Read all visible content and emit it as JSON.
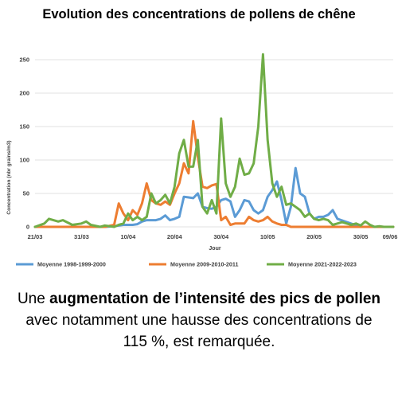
{
  "title": "Evolution des concentrations de pollens de chêne",
  "caption": {
    "part1": "Une ",
    "bold": "augmentation de l’intensité des pics de pollen",
    "part2": " avec notamment une hausse des concentrations de 115 %, est remarquée."
  },
  "colors": {
    "series1": "#5b9bd5",
    "series2": "#ed7d31",
    "series3": "#70ad47",
    "grid": "#d9d9d9",
    "axis_text": "#404040"
  },
  "chart_data": {
    "type": "line",
    "title": "Evolution des concentrations de pollens de chêne",
    "xlabel": "Jour",
    "ylabel": "Concentration (nbr grains/m3)",
    "ylim": [
      0,
      250
    ],
    "yticks": [
      0,
      50,
      100,
      150,
      200,
      250
    ],
    "xlim": [
      0,
      77
    ],
    "xticks": [
      {
        "label": "21/03",
        "x": 0
      },
      {
        "label": "31/03",
        "x": 10
      },
      {
        "label": "10/04",
        "x": 20
      },
      {
        "label": "20/04",
        "x": 30
      },
      {
        "label": "30/04",
        "x": 40
      },
      {
        "label": "10/05",
        "x": 50
      },
      {
        "label": "20/05",
        "x": 60
      },
      {
        "label": "30/05",
        "x": 70
      },
      {
        "label": "09/06",
        "x": 80
      }
    ],
    "grid": true,
    "legend_position": "bottom",
    "series": [
      {
        "name": "Moyenne 1998-1999-2000",
        "x": [
          0,
          5,
          10,
          15,
          17,
          19,
          20,
          21,
          22,
          23,
          24,
          25,
          26,
          27,
          28,
          29,
          30,
          31,
          32,
          33,
          34,
          35,
          36,
          37,
          38,
          39,
          40,
          41,
          42,
          43,
          44,
          45,
          46,
          47,
          48,
          49,
          50,
          51,
          52,
          53,
          54,
          55,
          56,
          57,
          58,
          59,
          60,
          61,
          62,
          63,
          64,
          65,
          70,
          77
        ],
        "y": [
          0,
          0,
          0,
          0,
          1,
          3,
          3,
          3,
          4,
          8,
          10,
          10,
          10,
          12,
          17,
          10,
          12,
          15,
          45,
          44,
          43,
          50,
          30,
          28,
          27,
          30,
          40,
          42,
          38,
          15,
          25,
          40,
          38,
          25,
          20,
          25,
          45,
          55,
          68,
          40,
          5,
          30,
          88,
          50,
          45,
          20,
          12,
          15,
          15,
          18,
          25,
          12,
          0,
          0
        ]
      },
      {
        "name": "Moyenne 2009-2010-2011",
        "x": [
          0,
          5,
          10,
          15,
          17,
          18,
          19,
          20,
          21,
          22,
          23,
          24,
          25,
          26,
          27,
          28,
          29,
          30,
          31,
          32,
          33,
          34,
          35,
          36,
          37,
          38,
          39,
          40,
          41,
          42,
          43,
          44,
          45,
          46,
          47,
          48,
          49,
          50,
          51,
          52,
          53,
          54,
          55,
          56,
          57,
          58,
          60,
          62,
          65,
          70,
          77
        ],
        "y": [
          0,
          0,
          0,
          0,
          3,
          35,
          20,
          10,
          25,
          18,
          35,
          65,
          40,
          35,
          33,
          38,
          33,
          50,
          65,
          95,
          80,
          158,
          105,
          60,
          58,
          62,
          64,
          10,
          15,
          3,
          5,
          5,
          5,
          15,
          10,
          8,
          10,
          15,
          8,
          5,
          3,
          3,
          0,
          0,
          0,
          0,
          0,
          0,
          0,
          0,
          0
        ]
      },
      {
        "name": "Moyenne 2021-2022-2023",
        "x": [
          0,
          2,
          3,
          5,
          6,
          8,
          10,
          11,
          12,
          14,
          15,
          17,
          18,
          19,
          20,
          21,
          22,
          23,
          24,
          25,
          26,
          27,
          28,
          29,
          30,
          31,
          32,
          33,
          34,
          35,
          36,
          37,
          38,
          39,
          40,
          41,
          42,
          43,
          44,
          45,
          46,
          47,
          48,
          49,
          50,
          51,
          52,
          53,
          54,
          55,
          56,
          57,
          58,
          59,
          60,
          61,
          62,
          63,
          64,
          65,
          66,
          67,
          68,
          69,
          70,
          71,
          72,
          73,
          74,
          75,
          77
        ],
        "y": [
          0,
          5,
          12,
          8,
          10,
          3,
          5,
          8,
          3,
          0,
          2,
          0,
          3,
          5,
          20,
          10,
          15,
          10,
          15,
          50,
          35,
          40,
          48,
          35,
          60,
          110,
          130,
          90,
          90,
          130,
          30,
          20,
          40,
          20,
          162,
          65,
          45,
          60,
          102,
          78,
          80,
          95,
          150,
          258,
          130,
          65,
          45,
          60,
          33,
          35,
          30,
          25,
          15,
          20,
          12,
          10,
          12,
          10,
          3,
          5,
          7,
          5,
          3,
          5,
          2,
          8,
          3,
          0,
          1,
          0,
          0
        ]
      }
    ]
  }
}
